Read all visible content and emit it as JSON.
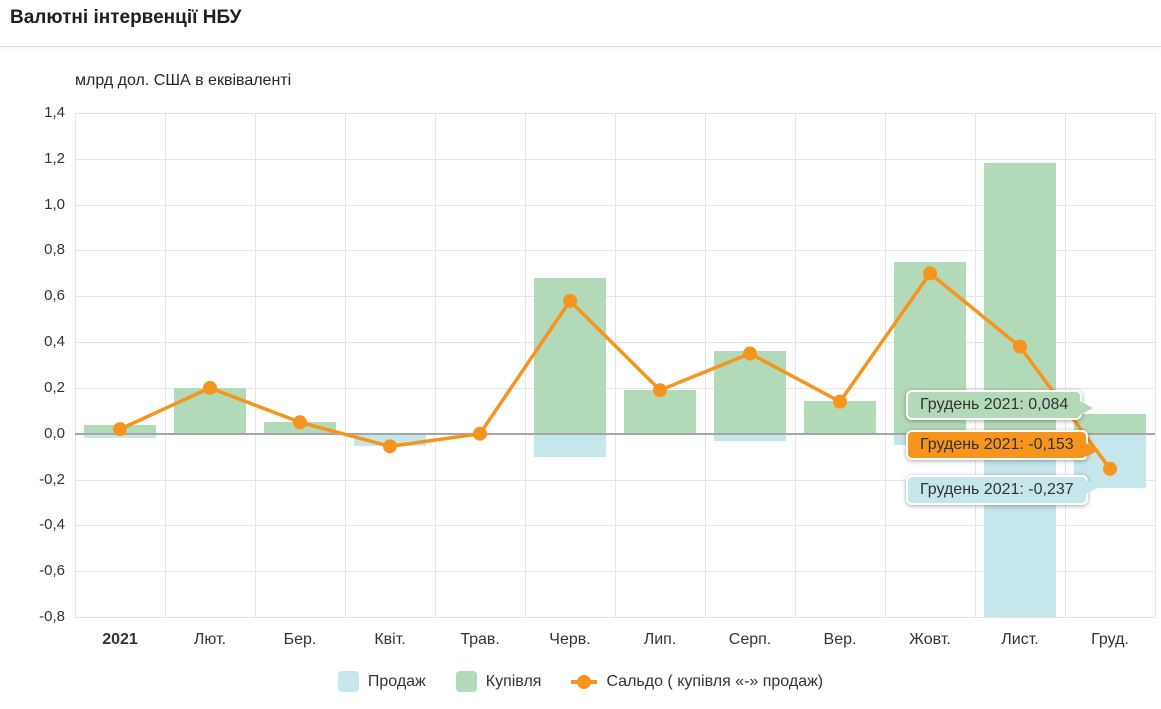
{
  "header": {
    "title": "Валютні інтервенції НБУ"
  },
  "chart_data": {
    "type": "bar",
    "combo": "grouped overlapping bars with line overlay",
    "title": "Валютні інтервенції НБУ",
    "unit_label": "млрд дол. США в еквіваленті",
    "categories": [
      "2021",
      "Лют.",
      "Бер.",
      "Квіт.",
      "Трав.",
      "Черв.",
      "Лип.",
      "Серп.",
      "Вер.",
      "Жовт.",
      "Лист.",
      "Груд."
    ],
    "series": [
      {
        "key": "prodazh",
        "name": "Продаж",
        "type": "bar",
        "color": "#c5e6ea",
        "values": [
          -0.02,
          0,
          0,
          -0.055,
          0,
          -0.1,
          0,
          -0.03,
          0,
          -0.05,
          -0.8,
          -0.237
        ]
      },
      {
        "key": "kupivlia",
        "name": "Купівля",
        "type": "bar",
        "color": "#b2d9b8",
        "values": [
          0.04,
          0.2,
          0.05,
          0,
          0.005,
          0.68,
          0.19,
          0.36,
          0.145,
          0.75,
          1.18,
          0.084
        ]
      },
      {
        "key": "saldo",
        "name": "Сальдо ( купівля «-» продаж)",
        "type": "line",
        "color": "#f7941e",
        "marker": "circle",
        "values": [
          0.02,
          0.2,
          0.05,
          -0.055,
          0.0,
          0.58,
          0.19,
          0.35,
          0.14,
          0.7,
          0.38,
          -0.153
        ]
      }
    ],
    "ylim": [
      -0.8,
      1.4
    ],
    "ytick_step": 0.2,
    "yticks": [
      {
        "label": "1,4",
        "value": 1.4
      },
      {
        "label": "1,2",
        "value": 1.2
      },
      {
        "label": "1,0",
        "value": 1.0
      },
      {
        "label": "0,8",
        "value": 0.8
      },
      {
        "label": "0,6",
        "value": 0.6
      },
      {
        "label": "0,4",
        "value": 0.4
      },
      {
        "label": "0,2",
        "value": 0.2
      },
      {
        "label": "0,0",
        "value": 0.0
      },
      {
        "label": "-0,2",
        "value": -0.2
      },
      {
        "label": "-0,4",
        "value": -0.4
      },
      {
        "label": "-0,6",
        "value": -0.6
      },
      {
        "label": "-0,8",
        "value": -0.8
      }
    ],
    "grid": true,
    "legend_position": "bottom"
  },
  "legend": {
    "items": [
      {
        "label": "Продаж",
        "color": "#c5e6ea"
      },
      {
        "label": "Купівля",
        "color": "#b2d9b8"
      },
      {
        "label": "Сальдо ( купівля «-» продаж)",
        "color": "#f7941e"
      }
    ]
  },
  "tooltips": [
    {
      "series": "Купівля",
      "text": "Грудень 2021: 0,084",
      "color": "#b2d9b8"
    },
    {
      "series": "Сальдо ( купівля «-» продаж)",
      "text": "Грудень 2021: -0,153",
      "color": "#f7941e"
    },
    {
      "series": "Продаж",
      "text": "Грудень 2021: -0,237",
      "color": "#c5e6ea"
    }
  ]
}
